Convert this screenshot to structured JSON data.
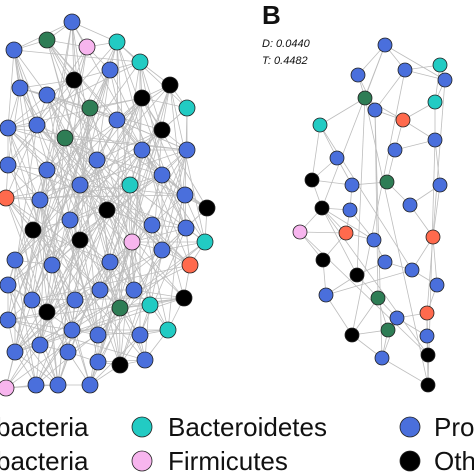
{
  "colors": {
    "Proteobacteria": "#4a6fdc",
    "Bacteroidetes": "#22cbc3",
    "Firmicutes": "#f7b5ee",
    "Actinobacteria": "#2e7d55",
    "Acidobacteria": "#ff6a4d",
    "Others": "#000000"
  },
  "panel_b": {
    "letter": "B",
    "stat_d": "D: 0.0440",
    "stat_t": "T: 0.4482"
  },
  "legend": {
    "row1_left": "bacteria",
    "row1_mid": "Bacteroidetes",
    "row1_right": "Pro",
    "row2_left": "bacteria",
    "row2_mid": "Firmicutes",
    "row2_right": "Oth"
  },
  "network_a_nodes": [
    [
      "Proteobacteria",
      72,
      22
    ],
    [
      "Bacteroidetes",
      117,
      42
    ],
    [
      "Firmicutes",
      87,
      47
    ],
    [
      "Actinobacteria",
      47,
      40
    ],
    [
      "Proteobacteria",
      14,
      50
    ],
    [
      "Bacteroidetes",
      140,
      62
    ],
    [
      "Proteobacteria",
      110,
      70
    ],
    [
      "Others",
      74,
      80
    ],
    [
      "Others",
      170,
      85
    ],
    [
      "Proteobacteria",
      20,
      88
    ],
    [
      "Proteobacteria",
      47,
      95
    ],
    [
      "Actinobacteria",
      90,
      108
    ],
    [
      "Others",
      142,
      98
    ],
    [
      "Bacteroidetes",
      187,
      108
    ],
    [
      "Proteobacteria",
      117,
      120
    ],
    [
      "Others",
      162,
      130
    ],
    [
      "Proteobacteria",
      8,
      128
    ],
    [
      "Proteobacteria",
      37,
      125
    ],
    [
      "Actinobacteria",
      65,
      138
    ],
    [
      "Proteobacteria",
      142,
      150
    ],
    [
      "Proteobacteria",
      187,
      150
    ],
    [
      "Proteobacteria",
      97,
      160
    ],
    [
      "Proteobacteria",
      8,
      165
    ],
    [
      "Proteobacteria",
      47,
      170
    ],
    [
      "Bacteroidetes",
      130,
      185
    ],
    [
      "Proteobacteria",
      162,
      175
    ],
    [
      "Proteobacteria",
      80,
      185
    ],
    [
      "Acidobacteria",
      6,
      198
    ],
    [
      "Proteobacteria",
      40,
      200
    ],
    [
      "Others",
      107,
      210
    ],
    [
      "Proteobacteria",
      185,
      195
    ],
    [
      "Others",
      207,
      208
    ],
    [
      "Proteobacteria",
      152,
      225
    ],
    [
      "Proteobacteria",
      70,
      220
    ],
    [
      "Others",
      33,
      230
    ],
    [
      "Firmicutes",
      132,
      242
    ],
    [
      "Proteobacteria",
      186,
      228
    ],
    [
      "Bacteroidetes",
      205,
      242
    ],
    [
      "Others",
      80,
      240
    ],
    [
      "Proteobacteria",
      110,
      262
    ],
    [
      "Proteobacteria",
      162,
      250
    ],
    [
      "Acidobacteria",
      190,
      265
    ],
    [
      "Proteobacteria",
      15,
      260
    ],
    [
      "Proteobacteria",
      52,
      265
    ],
    [
      "Proteobacteria",
      100,
      290
    ],
    [
      "Proteobacteria",
      134,
      290
    ],
    [
      "Bacteroidetes",
      150,
      305
    ],
    [
      "Others",
      184,
      298
    ],
    [
      "Proteobacteria",
      8,
      285
    ],
    [
      "Proteobacteria",
      32,
      300
    ],
    [
      "Others",
      47,
      312
    ],
    [
      "Proteobacteria",
      75,
      300
    ],
    [
      "Actinobacteria",
      120,
      308
    ],
    [
      "Proteobacteria",
      8,
      320
    ],
    [
      "Proteobacteria",
      40,
      345
    ],
    [
      "Proteobacteria",
      72,
      330
    ],
    [
      "Proteobacteria",
      98,
      335
    ],
    [
      "Proteobacteria",
      140,
      335
    ],
    [
      "Bacteroidetes",
      168,
      330
    ],
    [
      "Proteobacteria",
      15,
      352
    ],
    [
      "Proteobacteria",
      68,
      352
    ],
    [
      "Proteobacteria",
      98,
      362
    ],
    [
      "Proteobacteria",
      145,
      360
    ],
    [
      "Others",
      120,
      365
    ],
    [
      "Proteobacteria",
      36,
      385
    ],
    [
      "Proteobacteria",
      58,
      385
    ],
    [
      "Proteobacteria",
      90,
      385
    ],
    [
      "Firmicutes",
      6,
      388
    ]
  ],
  "network_b_nodes": [
    [
      "Proteobacteria",
      385,
      45
    ],
    [
      "Bacteroidetes",
      440,
      65
    ],
    [
      "Proteobacteria",
      405,
      70
    ],
    [
      "Proteobacteria",
      358,
      75
    ],
    [
      "Proteobacteria",
      445,
      80
    ],
    [
      "Actinobacteria",
      365,
      98
    ],
    [
      "Bacteroidetes",
      435,
      102
    ],
    [
      "Proteobacteria",
      375,
      110
    ],
    [
      "Acidobacteria",
      403,
      120
    ],
    [
      "Bacteroidetes",
      320,
      125
    ],
    [
      "Proteobacteria",
      435,
      140
    ],
    [
      "Proteobacteria",
      395,
      150
    ],
    [
      "Proteobacteria",
      337,
      158
    ],
    [
      "Others",
      312,
      180
    ],
    [
      "Actinobacteria",
      387,
      182
    ],
    [
      "Proteobacteria",
      352,
      185
    ],
    [
      "Proteobacteria",
      440,
      185
    ],
    [
      "Proteobacteria",
      410,
      205
    ],
    [
      "Proteobacteria",
      350,
      210
    ],
    [
      "Others",
      322,
      208
    ],
    [
      "Firmicutes",
      300,
      232
    ],
    [
      "Acidobacteria",
      346,
      233
    ],
    [
      "Proteobacteria",
      374,
      240
    ],
    [
      "Acidobacteria",
      433,
      237
    ],
    [
      "Proteobacteria",
      385,
      262
    ],
    [
      "Others",
      323,
      260
    ],
    [
      "Proteobacteria",
      412,
      270
    ],
    [
      "Others",
      357,
      275
    ],
    [
      "Proteobacteria",
      437,
      285
    ],
    [
      "Proteobacteria",
      326,
      295
    ],
    [
      "Actinobacteria",
      378,
      298
    ],
    [
      "Acidobacteria",
      427,
      313
    ],
    [
      "Proteobacteria",
      397,
      318
    ],
    [
      "Actinobacteria",
      388,
      330
    ],
    [
      "Others",
      352,
      335
    ],
    [
      "Proteobacteria",
      427,
      336
    ],
    [
      "Others",
      428,
      355
    ],
    [
      "Proteobacteria",
      382,
      358
    ],
    [
      "Others",
      428,
      385
    ]
  ]
}
